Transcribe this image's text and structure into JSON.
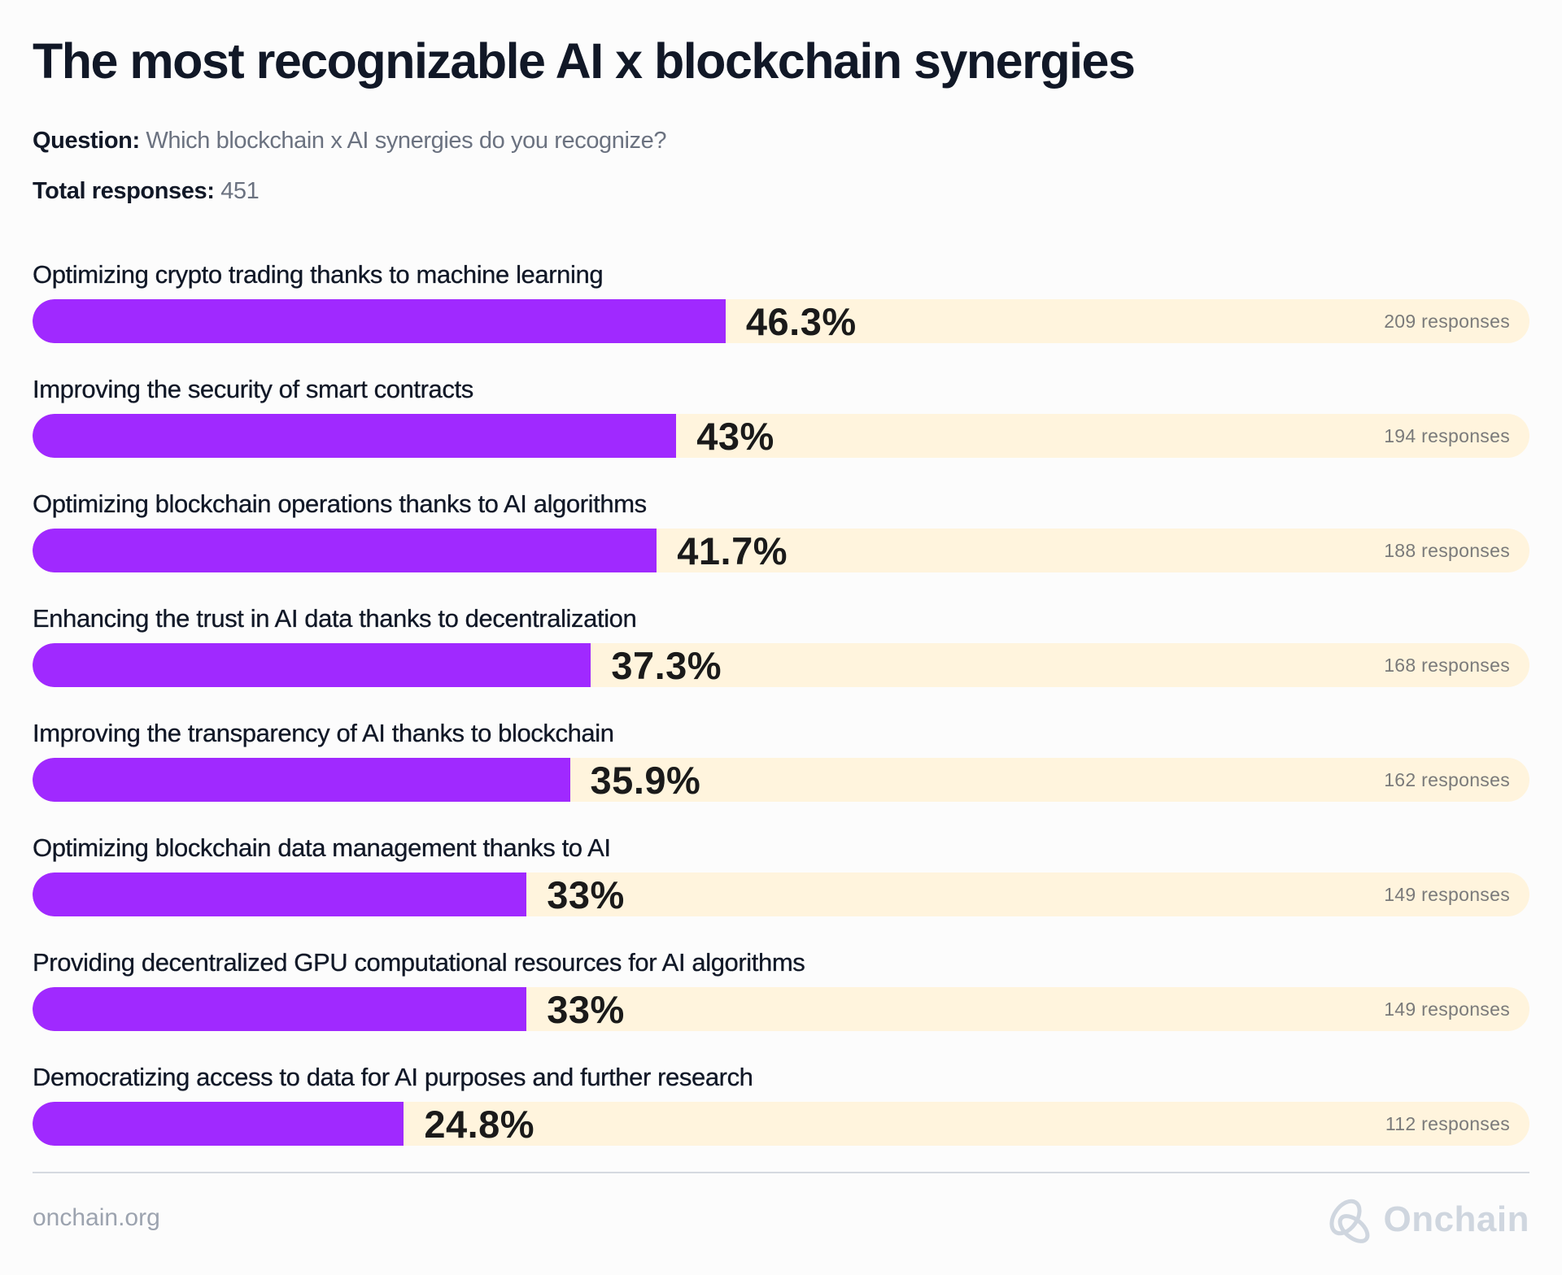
{
  "title": "The most recognizable AI x blockchain synergies",
  "question": {
    "label": "Question:",
    "text": "Which blockchain x AI synergies do you recognize?"
  },
  "total": {
    "label": "Total responses:",
    "value": "451"
  },
  "chart_data": {
    "type": "bar",
    "orientation": "horizontal",
    "title": "The most recognizable AI x blockchain synergies",
    "xlabel": "",
    "ylabel": "",
    "xlim": [
      0,
      100
    ],
    "colors": {
      "fill": "#a029ff",
      "track": "#fff4dd"
    },
    "categories": [
      "Optimizing crypto trading thanks to machine learning",
      "Improving the security of smart contracts",
      "Optimizing blockchain operations thanks to AI algorithms",
      "Enhancing the trust in AI data thanks to decentralization",
      "Improving the transparency of AI thanks to blockchain",
      "Optimizing blockchain data management thanks to AI",
      "Providing decentralized GPU computational resources for AI algorithms",
      "Democratizing access to data for AI purposes and further research"
    ],
    "values": [
      46.3,
      43,
      41.7,
      37.3,
      35.9,
      33,
      33,
      24.8
    ],
    "value_labels": [
      "46.3%",
      "43%",
      "41.7%",
      "37.3%",
      "35.9%",
      "33%",
      "33%",
      "24.8%"
    ],
    "responses": [
      "209 responses",
      "194 responses",
      "188 responses",
      "168 responses",
      "162 responses",
      "149 responses",
      "149 responses",
      "112 responses"
    ]
  },
  "footer": {
    "url": "onchain.org",
    "brand": "Onchain",
    "brand_icon": "onchain-logo-icon"
  }
}
